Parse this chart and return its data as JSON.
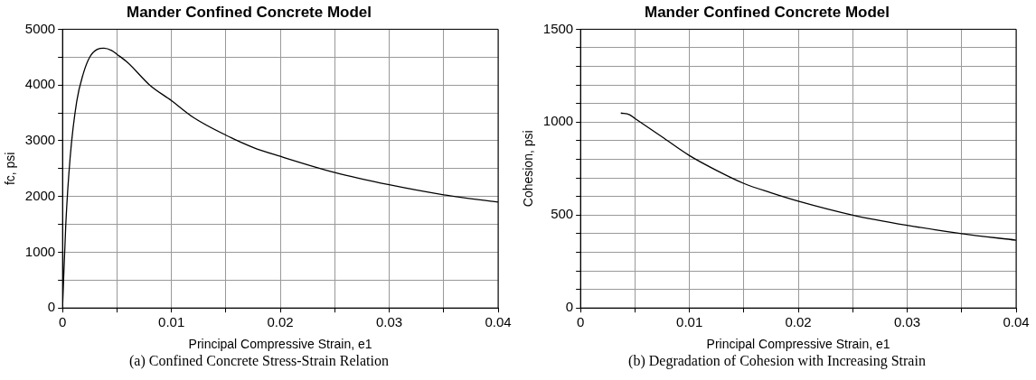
{
  "chart_data": [
    {
      "type": "line",
      "title": "Mander Confined Concrete Model",
      "xlabel": "Principal Compressive Strain, e1",
      "ylabel": "fc, psi",
      "annotations": [
        "(a) Confined Concrete Stress-Strain Relation"
      ],
      "xlim": [
        0,
        0.04
      ],
      "xticks": [
        0,
        {
          "value": 0.005,
          "label": null
        },
        0.01,
        {
          "value": 0.015,
          "label": null
        },
        0.02,
        {
          "value": 0.025,
          "label": null
        },
        0.03,
        {
          "value": 0.035,
          "label": null
        },
        0.04
      ],
      "ylim": [
        0,
        5000
      ],
      "yticks": [
        0,
        {
          "value": 500,
          "label": null
        },
        1000,
        {
          "value": 1500,
          "label": null
        },
        2000,
        {
          "value": 2500,
          "label": null
        },
        3000,
        {
          "value": 3500,
          "label": null
        },
        4000,
        {
          "value": 4500,
          "label": null
        },
        5000
      ],
      "grid": true,
      "legend": false,
      "marker": "none",
      "line_style": "solid",
      "series": [
        {
          "color": "#000000",
          "x": [
            0,
            0.0003,
            0.0007,
            0.0013,
            0.0019,
            0.0025,
            0.0032,
            0.0038,
            0.0045,
            0.005,
            0.006,
            0.008,
            0.01,
            0.012,
            0.015,
            0.0175,
            0.02,
            0.025,
            0.03,
            0.035,
            0.04
          ],
          "values": [
            0,
            1500,
            2700,
            3700,
            4200,
            4500,
            4640,
            4660,
            4620,
            4550,
            4400,
            4000,
            3720,
            3420,
            3100,
            2880,
            2720,
            2430,
            2210,
            2030,
            1900
          ]
        }
      ]
    },
    {
      "type": "line",
      "title": "Mander Confined Concrete Model",
      "xlabel": "Principal Compressive Strain, e1",
      "ylabel": "Cohesion, psi",
      "annotations": [
        "(b) Degradation of Cohesion with Increasing Strain"
      ],
      "xlim": [
        0,
        0.04
      ],
      "xticks": [
        0,
        {
          "value": 0.005,
          "label": null
        },
        0.01,
        {
          "value": 0.015,
          "label": null
        },
        0.02,
        {
          "value": 0.025,
          "label": null
        },
        0.03,
        {
          "value": 0.035,
          "label": null
        },
        0.04
      ],
      "ylim": [
        0,
        1500
      ],
      "yticks": [
        0,
        {
          "value": 100,
          "label": null
        },
        {
          "value": 200,
          "label": null
        },
        {
          "value": 300,
          "label": null
        },
        {
          "value": 400,
          "label": null
        },
        500,
        {
          "value": 600,
          "label": null
        },
        {
          "value": 700,
          "label": null
        },
        {
          "value": 800,
          "label": null
        },
        {
          "value": 900,
          "label": null
        },
        1000,
        {
          "value": 1100,
          "label": null
        },
        {
          "value": 1200,
          "label": null
        },
        {
          "value": 1300,
          "label": null
        },
        {
          "value": 1400,
          "label": null
        },
        1500
      ],
      "grid": true,
      "legend": false,
      "marker": "none",
      "line_style": "solid",
      "series": [
        {
          "color": "#000000",
          "x": [
            0.0037,
            0.0045,
            0.005,
            0.0075,
            0.01,
            0.0125,
            0.015,
            0.0175,
            0.02,
            0.025,
            0.03,
            0.035,
            0.04
          ],
          "values": [
            1049,
            1040,
            1020,
            920,
            820,
            740,
            670,
            620,
            575,
            500,
            445,
            400,
            365
          ]
        }
      ]
    }
  ]
}
